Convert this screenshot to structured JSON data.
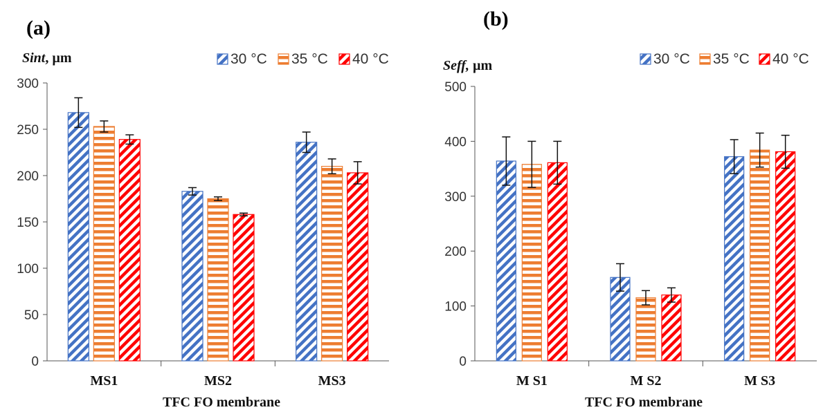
{
  "chart_data": [
    {
      "type": "bar",
      "panel_label": "(a)",
      "ylabel_italic": "Sint",
      "ylabel_unit": ", µm",
      "xlabel": "TFC  FO  membrane",
      "categories": [
        "MS1",
        "MS2",
        "MS3"
      ],
      "ylim": [
        0,
        300
      ],
      "yticks": [
        0,
        50,
        100,
        150,
        200,
        250,
        300
      ],
      "legend_position": "top-right",
      "series": [
        {
          "name": "30 °C",
          "color": "#4472C4",
          "pattern": "diagonal",
          "values": [
            268,
            183,
            236
          ],
          "errors": [
            16,
            4,
            11
          ]
        },
        {
          "name": "35 °C",
          "color": "#ED7D31",
          "pattern": "horizontal",
          "values": [
            253,
            175,
            210
          ],
          "errors": [
            6,
            2,
            8
          ]
        },
        {
          "name": "40 °C",
          "color": "#FF0000",
          "pattern": "diagonal",
          "values": [
            239,
            158,
            203
          ],
          "errors": [
            5,
            1.5,
            12
          ]
        }
      ]
    },
    {
      "type": "bar",
      "panel_label": "(b)",
      "ylabel_italic": "Seff,",
      "ylabel_unit": " µm",
      "xlabel": "TFC  FO  membrane",
      "categories": [
        "M S1",
        "M S2",
        "M S3"
      ],
      "ylim": [
        0,
        500
      ],
      "yticks": [
        0,
        100,
        200,
        300,
        400,
        500
      ],
      "legend_position": "top-right",
      "series": [
        {
          "name": "30 °C",
          "color": "#4472C4",
          "pattern": "diagonal",
          "values": [
            364,
            152,
            372
          ],
          "errors": [
            44,
            25,
            31
          ]
        },
        {
          "name": "35 °C",
          "color": "#ED7D31",
          "pattern": "horizontal",
          "values": [
            358,
            115,
            384
          ],
          "errors": [
            42,
            13,
            31
          ]
        },
        {
          "name": "40 °C",
          "color": "#FF0000",
          "pattern": "diagonal",
          "values": [
            361,
            120,
            381
          ],
          "errors": [
            39,
            13,
            30
          ]
        }
      ]
    }
  ]
}
